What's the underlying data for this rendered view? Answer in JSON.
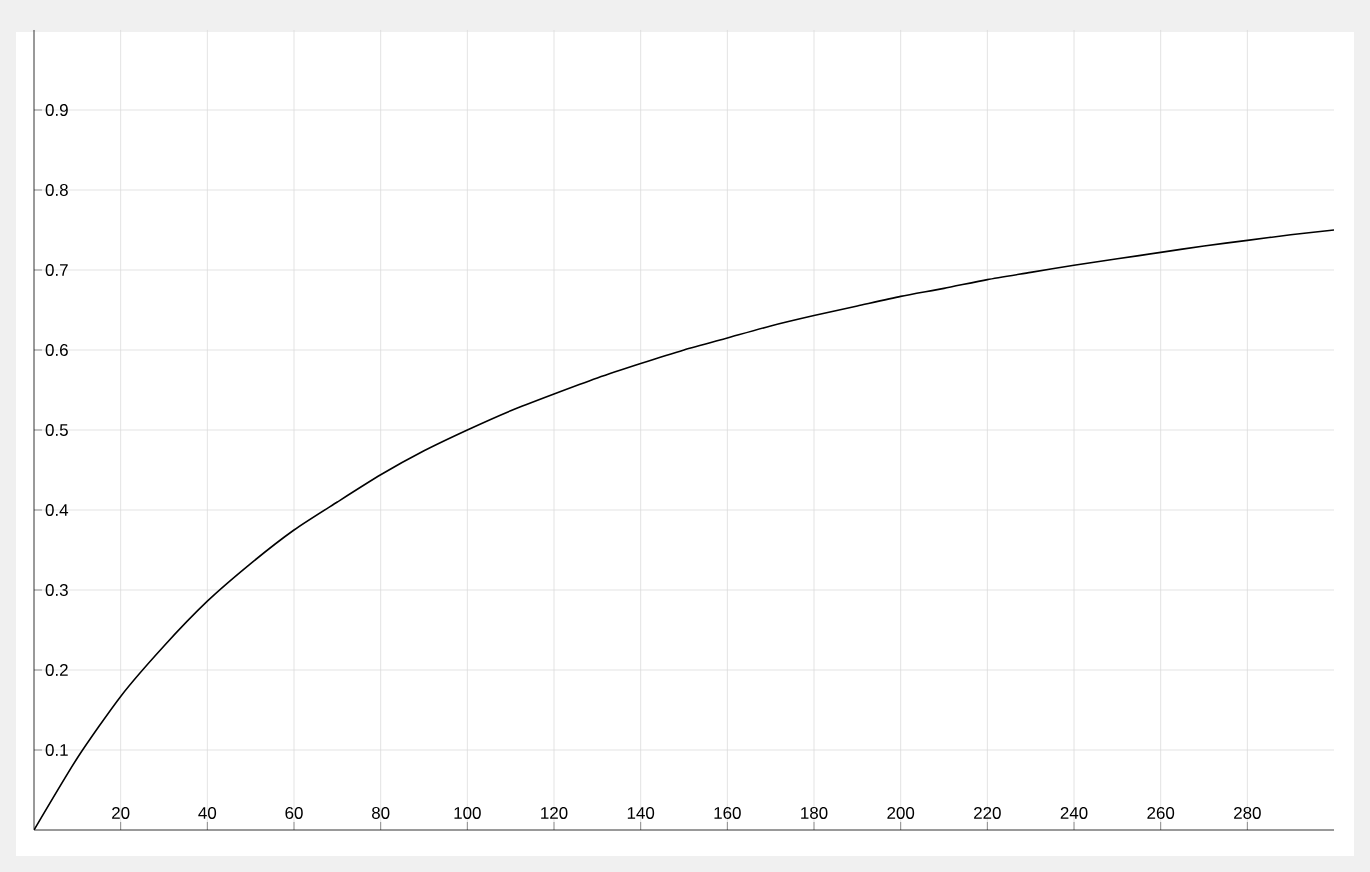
{
  "chart_data": {
    "type": "line",
    "x": [
      0,
      10,
      20,
      30,
      40,
      50,
      60,
      70,
      80,
      90,
      100,
      110,
      120,
      130,
      140,
      150,
      160,
      170,
      180,
      190,
      200,
      210,
      220,
      230,
      240,
      250,
      260,
      270,
      280,
      290,
      300
    ],
    "values": [
      0,
      0.09,
      0.167,
      0.23,
      0.286,
      0.333,
      0.375,
      0.41,
      0.444,
      0.474,
      0.5,
      0.524,
      0.545,
      0.565,
      0.583,
      0.6,
      0.615,
      0.63,
      0.643,
      0.655,
      0.667,
      0.677,
      0.688,
      0.697,
      0.706,
      0.714,
      0.722,
      0.73,
      0.737,
      0.744,
      0.75
    ],
    "color": "#000000",
    "xlim": [
      0,
      300
    ],
    "ylim": [
      0,
      1
    ],
    "xticks": [
      20,
      40,
      60,
      80,
      100,
      120,
      140,
      160,
      180,
      200,
      220,
      240,
      260,
      280
    ],
    "yticks": [
      0.1,
      0.2,
      0.3,
      0.4,
      0.5,
      0.6,
      0.7,
      0.8,
      0.9
    ],
    "grid": true,
    "marker": "none",
    "line_style": "solid"
  }
}
